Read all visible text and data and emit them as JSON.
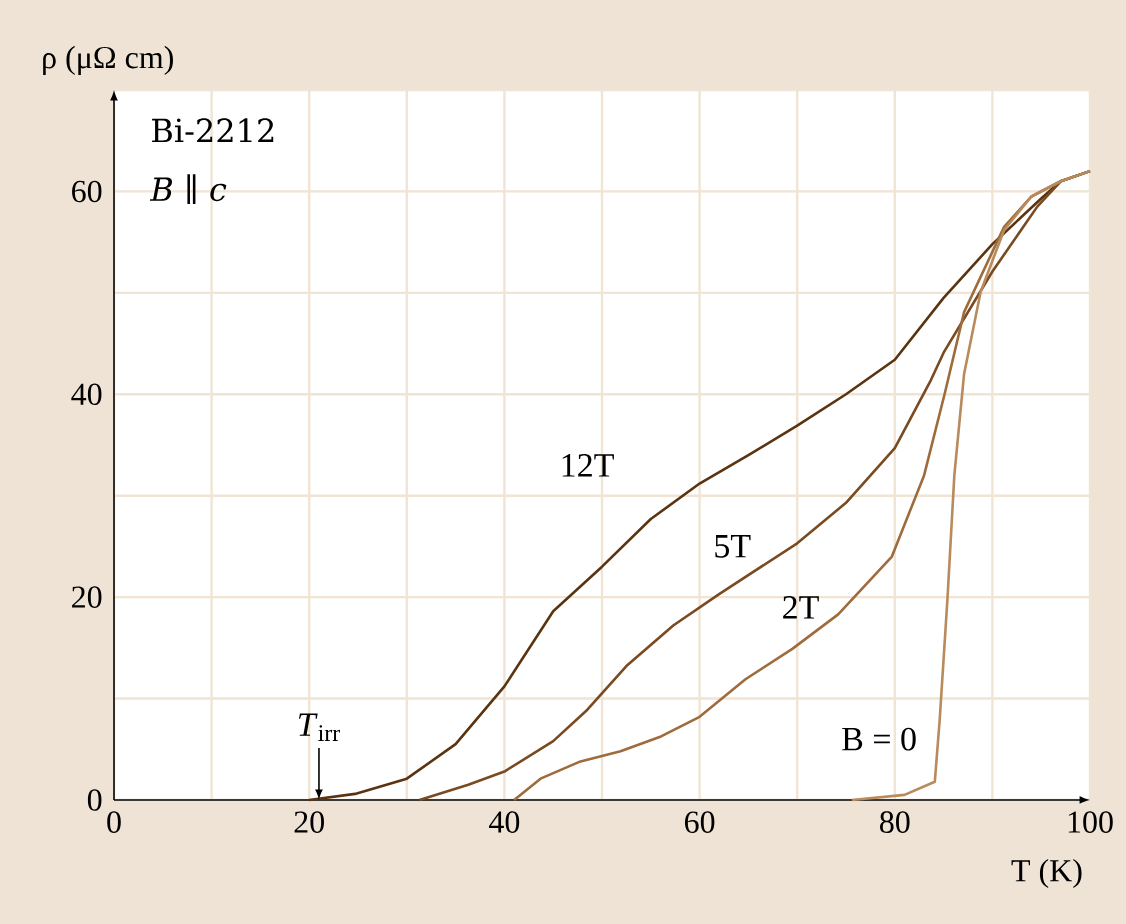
{
  "chart_data": {
    "type": "line",
    "xlabel": "T (K)",
    "ylabel": "ρ (μΩ cm)",
    "annotations": [
      "Bi-2212",
      "*B* ∥ *c*",
      {
        "text": "*T*$_{irr}$",
        "x": 21,
        "y": 0
      }
    ],
    "xlim": [
      0,
      100
    ],
    "ylim": [
      0,
      70
    ],
    "xticks": [
      0,
      {
        "value": 10,
        "label": null
      },
      20,
      {
        "value": 30,
        "label": null
      },
      40,
      {
        "value": 50,
        "label": null
      },
      60,
      {
        "value": 70,
        "label": null
      },
      80,
      {
        "value": 90,
        "label": null
      },
      100
    ],
    "yticks": [
      0,
      {
        "value": 10,
        "label": null
      },
      20,
      {
        "value": 30,
        "label": null
      },
      40,
      {
        "value": 50,
        "label": null
      },
      60,
      {
        "value": 70,
        "label": null
      }
    ],
    "grid": true,
    "series": [
      {
        "name": "12T",
        "color": "#5a3410",
        "x": [
          20,
          24.7,
          30,
          35,
          40,
          45,
          50,
          55,
          60,
          65,
          70,
          75,
          80,
          85,
          90,
          95,
          97,
          100
        ],
        "values": [
          0,
          0.6,
          2.1,
          5.5,
          11.2,
          18.6,
          23,
          27.7,
          31.2,
          34,
          36.9,
          40,
          43.4,
          49.5,
          54.8,
          59.3,
          61,
          62
        ]
      },
      {
        "name": "5T",
        "color": "#7a4a20",
        "x": [
          31.3,
          36.3,
          40,
          45,
          48.5,
          52.5,
          57.3,
          62,
          70,
          75,
          80,
          83.7,
          85,
          90,
          94.6,
          97,
          100
        ],
        "values": [
          0,
          1.5,
          2.8,
          5.8,
          8.9,
          13.2,
          17.2,
          20.3,
          25.3,
          29.3,
          34.7,
          41.4,
          44.1,
          52.1,
          58.5,
          61,
          62
        ]
      },
      {
        "name": "2T",
        "color": "#9e6b3c",
        "x": [
          41,
          43.7,
          47.8,
          51.9,
          55.9,
          60,
          64.7,
          69.5,
          74.2,
          79.7,
          83,
          85.1,
          87.1,
          91.2,
          94,
          97,
          100
        ],
        "values": [
          0,
          2.1,
          3.8,
          4.8,
          6.2,
          8.2,
          11.9,
          14.9,
          18.3,
          24,
          32,
          40,
          48.1,
          56.5,
          59.5,
          61,
          62
        ]
      },
      {
        "name": "B = 0",
        "color": "#b88a5c",
        "x": [
          75.6,
          81,
          84.1,
          84.6,
          85.4,
          86.1,
          87.1,
          88.8,
          91.2,
          94,
          97,
          100
        ],
        "values": [
          0,
          0.5,
          1.8,
          7.9,
          19.9,
          32,
          42,
          50.1,
          56.2,
          59.5,
          61,
          62
        ]
      }
    ]
  }
}
